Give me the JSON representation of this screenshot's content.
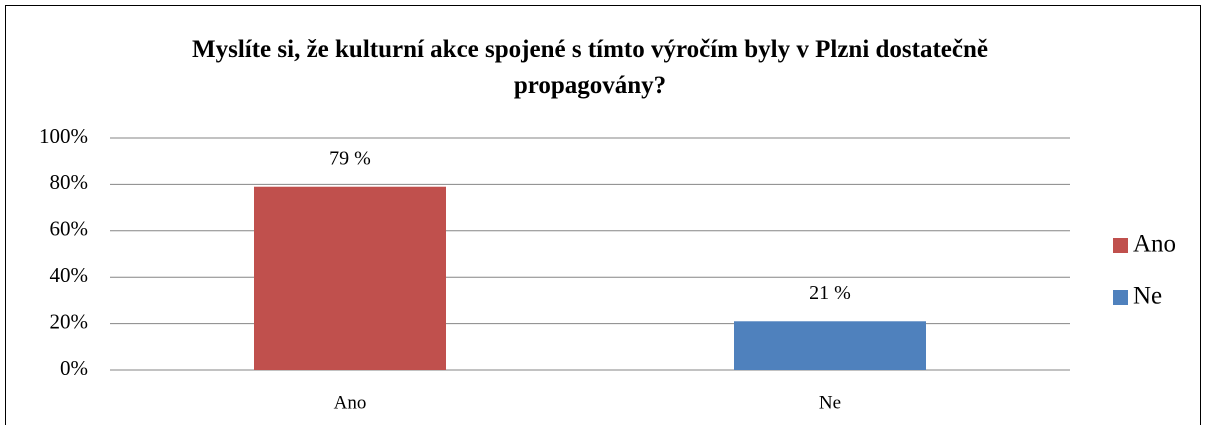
{
  "chart_data": {
    "type": "bar",
    "title": "Myslíte si, že kulturní akce spojené s tímto výročím byly v Plzni dostatečně propagovány?",
    "categories": [
      "Ano",
      "Ne"
    ],
    "values": [
      79,
      21
    ],
    "value_labels": [
      "79 %",
      "21 %"
    ],
    "colors": [
      "#c0504d",
      "#4f81bd"
    ],
    "ylim": [
      0,
      100
    ],
    "yticks": [
      {
        "value": 0,
        "label": "0%"
      },
      {
        "value": 20,
        "label": "20%"
      },
      {
        "value": 40,
        "label": "40%"
      },
      {
        "value": 60,
        "label": "60%"
      },
      {
        "value": 80,
        "label": "80%"
      },
      {
        "value": 100,
        "label": "100%"
      }
    ],
    "grid": true,
    "legend": "right"
  }
}
